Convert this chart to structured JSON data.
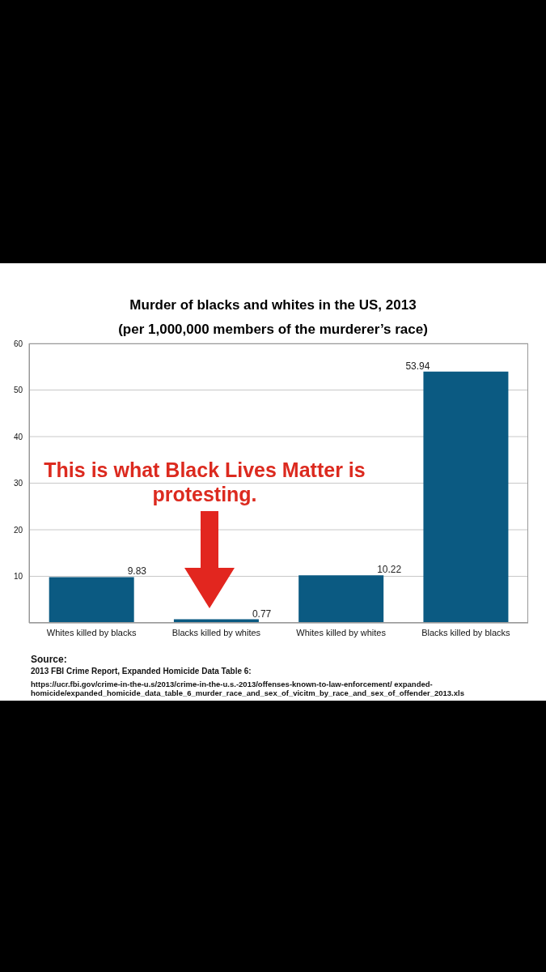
{
  "chart_data": {
    "type": "bar",
    "title": "Murder of blacks and whites in the US, 2013",
    "subtitle": "(per 1,000,000 members of the murderer’s race)",
    "categories": [
      "Whites killed by blacks",
      "Blacks killed by whites",
      "Whites killed by whites",
      "Blacks killed by blacks"
    ],
    "values": [
      9.83,
      0.77,
      10.22,
      53.94
    ],
    "color": "#0b5a82",
    "ylim": [
      0,
      60
    ],
    "yticks": [
      {
        "value": 0,
        "label": null
      },
      10,
      20,
      30,
      40,
      50,
      60
    ],
    "grid": "y",
    "data_labels": true,
    "annotations": [
      "This is what Black Lives Matter is protesting.",
      "Source:",
      "2013 FBI Crime Report, Expanded Homicide Data Table 6:",
      "https://ucr.fbi.gov/crime-in-the-u.s/2013/crime-in-the-u.s.-2013/offenses-known-to-law-enforcement/ expanded-homicide/expanded_homicide_data_table_6_murder_race_and_sex_of_vicitm_by_race_and_sex_of_offender_2013.xls"
    ]
  }
}
